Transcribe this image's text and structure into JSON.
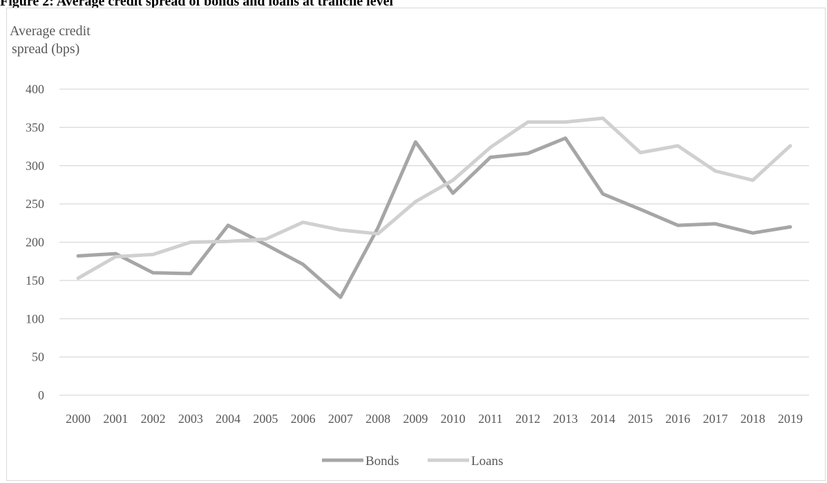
{
  "figure": {
    "title": "Figure 2: Average credit spread of bonds and loans at tranche level"
  },
  "chart_data": {
    "type": "line",
    "title": "",
    "ylabel_lines": [
      "Average credit",
      "spread (bps)"
    ],
    "xlabel": "",
    "categories": [
      "2000",
      "2001",
      "2002",
      "2003",
      "2004",
      "2005",
      "2006",
      "2007",
      "2008",
      "2009",
      "2010",
      "2011",
      "2012",
      "2013",
      "2014",
      "2015",
      "2016",
      "2017",
      "2018",
      "2019"
    ],
    "ylim": [
      0,
      400
    ],
    "yticks": [
      0,
      50,
      100,
      150,
      200,
      250,
      300,
      350,
      400
    ],
    "grid": true,
    "legend_position": "bottom",
    "series": [
      {
        "name": "Bonds",
        "color": "#a6a6a6",
        "values": [
          182,
          185,
          160,
          159,
          222,
          197,
          171,
          128,
          219,
          331,
          264,
          311,
          316,
          336,
          263,
          243,
          222,
          224,
          212,
          220
        ]
      },
      {
        "name": "Loans",
        "color": "#d0d0d0",
        "values": [
          153,
          181,
          184,
          200,
          201,
          204,
          226,
          216,
          211,
          253,
          281,
          324,
          357,
          357,
          362,
          317,
          326,
          293,
          281,
          326
        ]
      }
    ]
  }
}
